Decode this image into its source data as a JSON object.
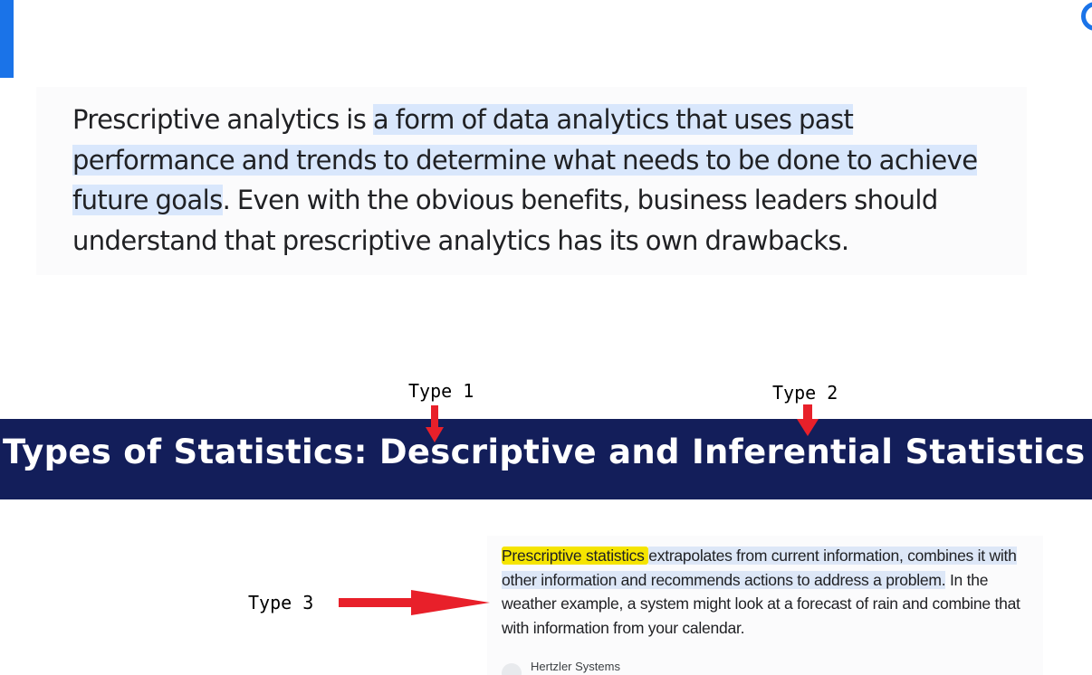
{
  "snippet": {
    "before": "Prescriptive analytics is ",
    "highlighted_1": "a form of data analytics that uses past",
    "highlighted_2": "performance and trends to determine what needs to be done to achieve",
    "highlighted_3": "future goals",
    "after": ". Even with the obvious benefits, business leaders should understand that prescriptive analytics has its own drawbacks."
  },
  "annotations": {
    "type1": "Type 1",
    "type2": "Type 2",
    "type3": "Type 3",
    "arrow_color": "#e8202a"
  },
  "banner": {
    "title": "Types of Statistics: Descriptive and Inferential Statistics",
    "background": "#131e5a"
  },
  "result": {
    "highlight_yellow": "Prescriptive statistics ",
    "highlight_blue": "extrapolates from current information, combines it with other information and recommends actions to address a problem.",
    "rest": " In the weather example, a system might look at a forecast of rain and combine that with information from your calendar.",
    "source": "Hertzler Systems"
  },
  "colors": {
    "accent_blue": "#1a73e8",
    "snippet_highlight": "#d9e7fc",
    "marker_yellow": "#f5e400"
  }
}
